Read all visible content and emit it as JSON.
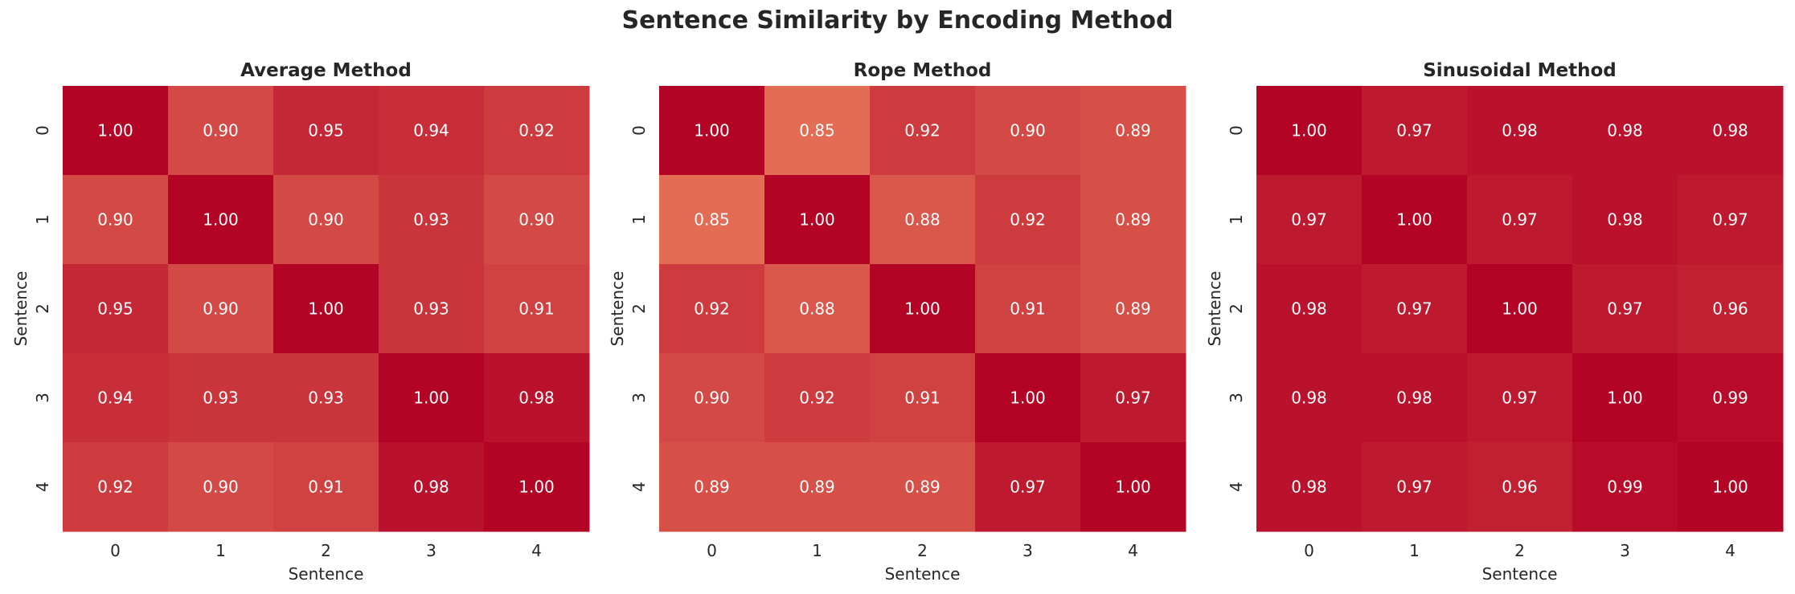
{
  "chart_data": [
    {
      "type": "heatmap",
      "title": "Average Method",
      "xlabel": "Sentence",
      "ylabel": "Sentence",
      "x_ticks": [
        "0",
        "1",
        "2",
        "3",
        "4"
      ],
      "y_ticks": [
        "0",
        "1",
        "2",
        "3",
        "4"
      ],
      "values": [
        [
          1.0,
          0.9,
          0.95,
          0.94,
          0.92
        ],
        [
          0.9,
          1.0,
          0.9,
          0.93,
          0.9
        ],
        [
          0.95,
          0.9,
          1.0,
          0.93,
          0.91
        ],
        [
          0.94,
          0.93,
          0.93,
          1.0,
          0.98
        ],
        [
          0.92,
          0.9,
          0.91,
          0.98,
          1.0
        ]
      ],
      "colormap": "coolwarm",
      "colorbar": false
    },
    {
      "type": "heatmap",
      "title": "Rope Method",
      "xlabel": "Sentence",
      "ylabel": "Sentence",
      "x_ticks": [
        "0",
        "1",
        "2",
        "3",
        "4"
      ],
      "y_ticks": [
        "0",
        "1",
        "2",
        "3",
        "4"
      ],
      "values": [
        [
          1.0,
          0.85,
          0.92,
          0.9,
          0.89
        ],
        [
          0.85,
          1.0,
          0.88,
          0.92,
          0.89
        ],
        [
          0.92,
          0.88,
          1.0,
          0.91,
          0.89
        ],
        [
          0.9,
          0.92,
          0.91,
          1.0,
          0.97
        ],
        [
          0.89,
          0.89,
          0.89,
          0.97,
          1.0
        ]
      ],
      "colormap": "coolwarm",
      "colorbar": false
    },
    {
      "type": "heatmap",
      "title": "Sinusoidal Method",
      "xlabel": "Sentence",
      "ylabel": "Sentence",
      "x_ticks": [
        "0",
        "1",
        "2",
        "3",
        "4"
      ],
      "y_ticks": [
        "0",
        "1",
        "2",
        "3",
        "4"
      ],
      "values": [
        [
          1.0,
          0.97,
          0.98,
          0.98,
          0.98
        ],
        [
          0.97,
          1.0,
          0.97,
          0.98,
          0.97
        ],
        [
          0.98,
          0.97,
          1.0,
          0.97,
          0.96
        ],
        [
          0.98,
          0.98,
          0.97,
          1.0,
          0.99
        ],
        [
          0.98,
          0.97,
          0.96,
          0.99,
          1.0
        ]
      ],
      "colormap": "coolwarm",
      "colorbar": false
    }
  ],
  "suptitle": "Sentence Similarity by Encoding Method",
  "colors": {
    "high": "#b40426",
    "low": "#e36c55",
    "annotation": "#ffffff",
    "text": "#262626"
  }
}
